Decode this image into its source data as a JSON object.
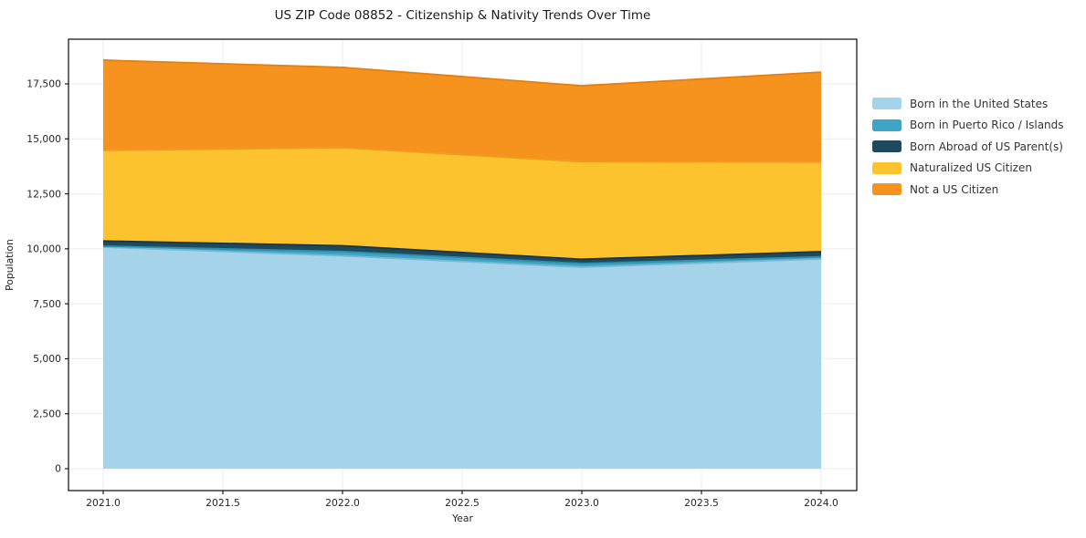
{
  "chart_data": {
    "type": "area",
    "stacked": true,
    "title": "US ZIP Code 08852 - Citizenship & Nativity Trends Over Time",
    "xlabel": "Year",
    "ylabel": "Population",
    "x": [
      2021,
      2022,
      2023,
      2024
    ],
    "x_tick_values": [
      2021.0,
      2021.5,
      2022.0,
      2022.5,
      2023.0,
      2023.5,
      2024.0
    ],
    "x_ticks": [
      "2021.0",
      "2021.5",
      "2022.0",
      "2022.5",
      "2023.0",
      "2023.5",
      "2024.0"
    ],
    "y_tick_values": [
      0,
      2500,
      5000,
      7500,
      10000,
      12500,
      15000,
      17500
    ],
    "y_ticks": [
      "0",
      "2,500",
      "5,000",
      "7,500",
      "10,000",
      "12,500",
      "15,000",
      "17,500"
    ],
    "xlim": [
      2020.86,
      2024.15
    ],
    "ylim": [
      -980,
      19520
    ],
    "grid": true,
    "grid_color": "#ececec",
    "legend_position": "right",
    "series": [
      {
        "name": "Born in the United States",
        "color": "#A5D3E9",
        "edge": "#7ab9d6",
        "values": [
          10080,
          9680,
          9165,
          9540
        ]
      },
      {
        "name": "Born in Puerto Rico / Islands",
        "color": "#3EA5C4",
        "edge": "#2e8eac",
        "values": [
          40,
          195,
          165,
          95
        ]
      },
      {
        "name": "Born Abroad of US Parent(s)",
        "color": "#1F4A5E",
        "edge": "#16374a",
        "values": [
          235,
          265,
          195,
          235
        ]
      },
      {
        "name": "Naturalized US Citizen",
        "color": "#FDC32F",
        "edge": "#f09d1e",
        "values": [
          4120,
          4460,
          4435,
          4075
        ]
      },
      {
        "name": "Not a US Citizen",
        "color": "#F6921E",
        "edge": "#e47f12",
        "values": [
          4105,
          3650,
          3455,
          4090
        ]
      }
    ],
    "totals": [
      18580,
      18250,
      17415,
      18035
    ]
  }
}
